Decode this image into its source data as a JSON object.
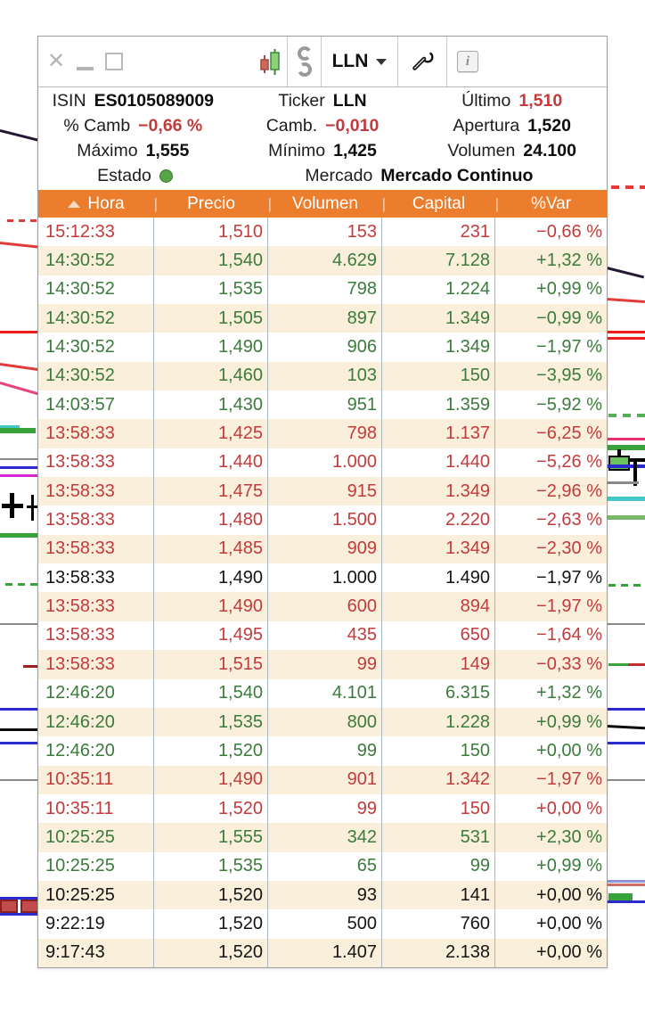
{
  "titlebar": {
    "ticker": "LLN",
    "info_icon_glyph": "i"
  },
  "info": {
    "lines": [
      [
        {
          "label": "ISIN",
          "value": "ES0105089009"
        },
        {
          "label": "Ticker",
          "value": "LLN"
        },
        {
          "label": "Último",
          "value": "1,510",
          "value_color": "negative"
        }
      ],
      [
        {
          "label": "% Camb",
          "value": "−0,66 %",
          "value_color": "negative"
        },
        {
          "label": "Camb.",
          "value": "−0,010",
          "value_color": "negative"
        },
        {
          "label": "Apertura",
          "value": "1,520"
        }
      ],
      [
        {
          "label": "Máximo",
          "value": "1,555"
        },
        {
          "label": "Mínimo",
          "value": "1,425"
        },
        {
          "label": "Volumen",
          "value": "24.100"
        }
      ],
      [
        {
          "label": "Estado",
          "dot": "green"
        },
        {
          "label": "Mercado",
          "value": "Mercado Continuo"
        }
      ]
    ]
  },
  "table": {
    "header_separator": "|",
    "columns": [
      {
        "key": "hora",
        "label": "Hora",
        "sort": true
      },
      {
        "key": "precio",
        "label": "Precio"
      },
      {
        "key": "volumen",
        "label": "Volumen"
      },
      {
        "key": "capital",
        "label": "Capital"
      },
      {
        "key": "var",
        "label": "%Var"
      }
    ],
    "rows": [
      {
        "time": "15:12:33",
        "price": "1,510",
        "volume": "153",
        "capital": "231",
        "var": "−0,66 %",
        "color": "red"
      },
      {
        "time": "14:30:52",
        "price": "1,540",
        "volume": "4.629",
        "capital": "7.128",
        "var": "+1,32 %",
        "color": "green"
      },
      {
        "time": "14:30:52",
        "price": "1,535",
        "volume": "798",
        "capital": "1.224",
        "var": "+0,99 %",
        "color": "green"
      },
      {
        "time": "14:30:52",
        "price": "1,505",
        "volume": "897",
        "capital": "1.349",
        "var": "−0,99 %",
        "color": "green"
      },
      {
        "time": "14:30:52",
        "price": "1,490",
        "volume": "906",
        "capital": "1.349",
        "var": "−1,97 %",
        "color": "green"
      },
      {
        "time": "14:30:52",
        "price": "1,460",
        "volume": "103",
        "capital": "150",
        "var": "−3,95 %",
        "color": "green"
      },
      {
        "time": "14:03:57",
        "price": "1,430",
        "volume": "951",
        "capital": "1.359",
        "var": "−5,92 %",
        "color": "green"
      },
      {
        "time": "13:58:33",
        "price": "1,425",
        "volume": "798",
        "capital": "1.137",
        "var": "−6,25 %",
        "color": "red"
      },
      {
        "time": "13:58:33",
        "price": "1,440",
        "volume": "1.000",
        "capital": "1.440",
        "var": "−5,26 %",
        "color": "red"
      },
      {
        "time": "13:58:33",
        "price": "1,475",
        "volume": "915",
        "capital": "1.349",
        "var": "−2,96 %",
        "color": "red"
      },
      {
        "time": "13:58:33",
        "price": "1,480",
        "volume": "1.500",
        "capital": "2.220",
        "var": "−2,63 %",
        "color": "red"
      },
      {
        "time": "13:58:33",
        "price": "1,485",
        "volume": "909",
        "capital": "1.349",
        "var": "−2,30 %",
        "color": "red"
      },
      {
        "time": "13:58:33",
        "price": "1,490",
        "volume": "1.000",
        "capital": "1.490",
        "var": "−1,97 %",
        "color": "black"
      },
      {
        "time": "13:58:33",
        "price": "1,490",
        "volume": "600",
        "capital": "894",
        "var": "−1,97 %",
        "color": "red"
      },
      {
        "time": "13:58:33",
        "price": "1,495",
        "volume": "435",
        "capital": "650",
        "var": "−1,64 %",
        "color": "red"
      },
      {
        "time": "13:58:33",
        "price": "1,515",
        "volume": "99",
        "capital": "149",
        "var": "−0,33 %",
        "color": "red"
      },
      {
        "time": "12:46:20",
        "price": "1,540",
        "volume": "4.101",
        "capital": "6.315",
        "var": "+1,32 %",
        "color": "green"
      },
      {
        "time": "12:46:20",
        "price": "1,535",
        "volume": "800",
        "capital": "1.228",
        "var": "+0,99 %",
        "color": "green"
      },
      {
        "time": "12:46:20",
        "price": "1,520",
        "volume": "99",
        "capital": "150",
        "var": "+0,00 %",
        "color": "green"
      },
      {
        "time": "10:35:11",
        "price": "1,490",
        "volume": "901",
        "capital": "1.342",
        "var": "−1,97 %",
        "color": "red"
      },
      {
        "time": "10:35:11",
        "price": "1,520",
        "volume": "99",
        "capital": "150",
        "var": "+0,00 %",
        "color": "red"
      },
      {
        "time": "10:25:25",
        "price": "1,555",
        "volume": "342",
        "capital": "531",
        "var": "+2,30 %",
        "color": "green"
      },
      {
        "time": "10:25:25",
        "price": "1,535",
        "volume": "65",
        "capital": "99",
        "var": "+0,99 %",
        "color": "green"
      },
      {
        "time": "10:25:25",
        "price": "1,520",
        "volume": "93",
        "capital": "141",
        "var": "+0,00 %",
        "color": "black"
      },
      {
        "time": "9:22:19",
        "price": "1,520",
        "volume": "500",
        "capital": "760",
        "var": "+0,00 %",
        "color": "black"
      },
      {
        "time": "9:17:43",
        "price": "1,520",
        "volume": "1.407",
        "capital": "2.138",
        "var": "+0,00 %",
        "color": "black"
      }
    ]
  },
  "colors": {
    "header_bg": "#EC7D2D",
    "row_alt_bg": "#FAEFDB",
    "negative": "#C23B3C",
    "positive": "#3B7B3C",
    "neutral": "#141414",
    "grid_line": "#A9B6C2",
    "status_dot": "#55A546"
  }
}
